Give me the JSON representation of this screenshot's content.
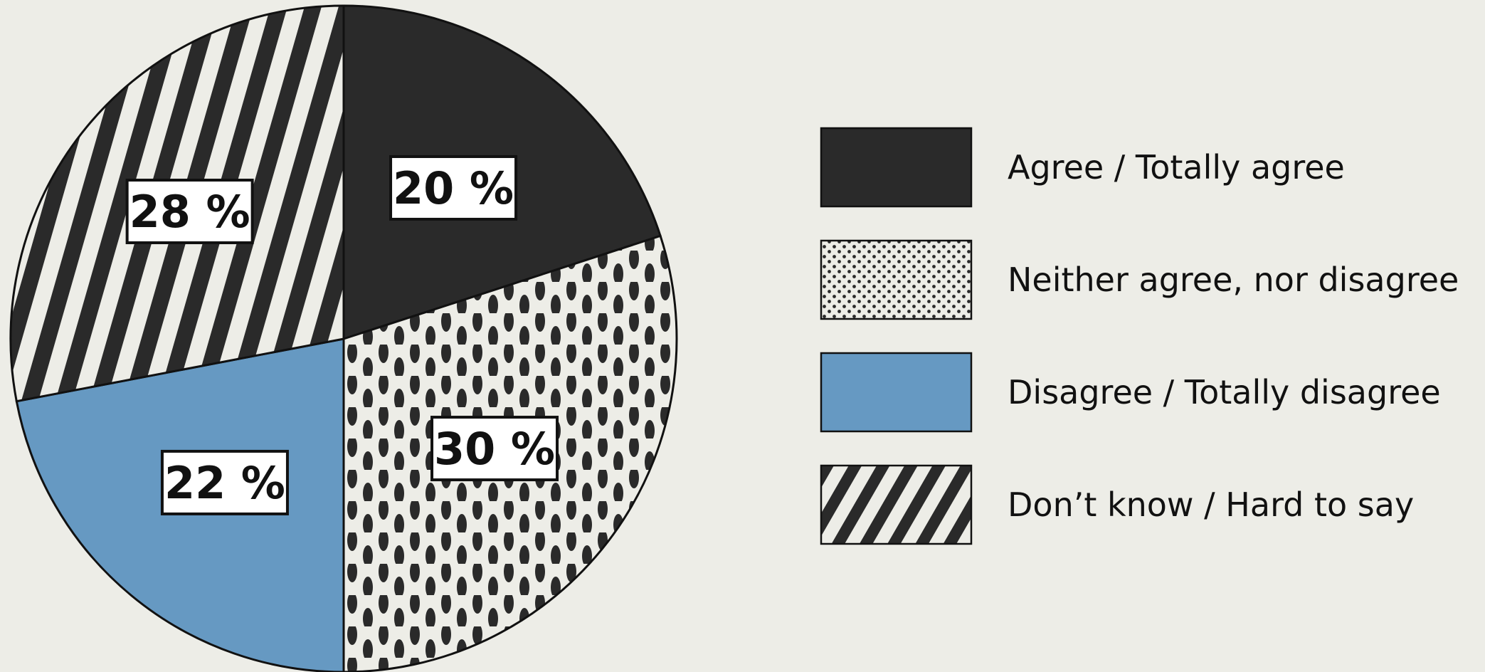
{
  "chart_data": {
    "type": "pie",
    "title": "",
    "slices": [
      {
        "label": "Agree / Totally agree",
        "value": 20,
        "display": "20 %",
        "fill": "#2a2a2a",
        "pattern": "solid-dark"
      },
      {
        "label": "Neither agree, nor disagree",
        "value": 30,
        "display": "30 %",
        "fill": "#ededE7",
        "pattern": "dots"
      },
      {
        "label": "Disagree / Totally disagree",
        "value": 22,
        "display": "22 %",
        "fill": "#6699c2",
        "pattern": "solid-blue"
      },
      {
        "label": "Don’t know / Hard to say",
        "value": 28,
        "display": "28 %",
        "fill": "#ededE7",
        "pattern": "stripes"
      }
    ],
    "start_angle": "top",
    "direction": "clockwise",
    "legend_position": "right"
  },
  "colors": {
    "background": "#ededE7",
    "dark": "#2a2a2a",
    "blue": "#6699c2",
    "outline": "#111111"
  }
}
